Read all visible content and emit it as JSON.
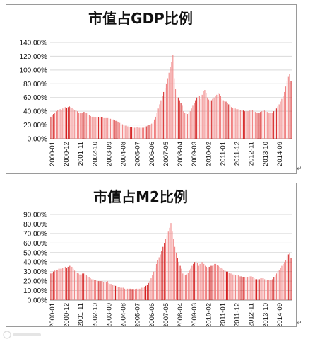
{
  "chart_data": [
    {
      "type": "bar",
      "title": "市值占GDP比例",
      "ylim": [
        0,
        140
      ],
      "yticks": [
        "0.00%",
        "20.00%",
        "40.00%",
        "60.00%",
        "80.00%",
        "100.00%",
        "120.00%",
        "140.00%"
      ],
      "xticks": [
        "2000-01",
        "2000-12",
        "2001-11",
        "2002-10",
        "2003-09",
        "2004-08",
        "2005-07",
        "2006-06",
        "2007-05",
        "2008-04",
        "2009-03",
        "2010-02",
        "2011-01",
        "2011-12",
        "2012-11",
        "2013-10",
        "2014-09"
      ],
      "colors": {
        "bar": "#f08080",
        "bar_dark": "#d42020"
      },
      "grid": true,
      "values": [
        32,
        34,
        36,
        38,
        40,
        42,
        42,
        43,
        42,
        44,
        46,
        46,
        45,
        46,
        47,
        46,
        45,
        43,
        42,
        42,
        40,
        38,
        37,
        37,
        38,
        39,
        38,
        37,
        35,
        34,
        33,
        32,
        32,
        31,
        31,
        31,
        31,
        30,
        31,
        31,
        30,
        30,
        30,
        30,
        29,
        29,
        29,
        28,
        27,
        26,
        25,
        24,
        23,
        22,
        21,
        20,
        19,
        19,
        18,
        17,
        17,
        17,
        17,
        16,
        16,
        17,
        16,
        16,
        16,
        16,
        16,
        17,
        18,
        19,
        20,
        21,
        22,
        24,
        28,
        32,
        38,
        44,
        50,
        56,
        62,
        68,
        74,
        80,
        88,
        96,
        104,
        112,
        122,
        88,
        72,
        64,
        60,
        56,
        52,
        48,
        40,
        38,
        37,
        36,
        38,
        40,
        44,
        48,
        52,
        56,
        60,
        64,
        62,
        58,
        64,
        70,
        71,
        66,
        60,
        57,
        55,
        56,
        58,
        60,
        62,
        64,
        66,
        65,
        62,
        58,
        56,
        55,
        54,
        52,
        50,
        48,
        46,
        45,
        44,
        44,
        43,
        43,
        42,
        42,
        41,
        41,
        40,
        40,
        40,
        40,
        41,
        42,
        42,
        40,
        39,
        38,
        38,
        38,
        39,
        40,
        41,
        41,
        40,
        39,
        38,
        38,
        38,
        38,
        40,
        42,
        44,
        47,
        50,
        54,
        58,
        62,
        68,
        76,
        84,
        90,
        94,
        84
      ]
    },
    {
      "type": "bar",
      "title": "市值占M2比例",
      "ylim": [
        0,
        90
      ],
      "yticks": [
        "0.00%",
        "10.00%",
        "20.00%",
        "30.00%",
        "40.00%",
        "50.00%",
        "60.00%",
        "70.00%",
        "80.00%",
        "90.00%"
      ],
      "xticks": [
        "2000-01",
        "2000-12",
        "2001-11",
        "2002-10",
        "2003-09",
        "2004-08",
        "2005-07",
        "2006-06",
        "2007-05",
        "2008-04",
        "2009-03",
        "2010-02",
        "2011-01",
        "2011-12",
        "2012-11",
        "2013-10",
        "2014-09"
      ],
      "colors": {
        "bar": "#f08080",
        "bar_dark": "#d42020"
      },
      "grid": true,
      "values": [
        28,
        29,
        30,
        31,
        32,
        32,
        33,
        33,
        33,
        34,
        35,
        35,
        34,
        35,
        36,
        36,
        35,
        33,
        31,
        30,
        29,
        28,
        27,
        27,
        28,
        28,
        27,
        26,
        25,
        24,
        23,
        22,
        22,
        21,
        21,
        21,
        20,
        20,
        20,
        20,
        19,
        19,
        19,
        20,
        18,
        17,
        17,
        16,
        16,
        15,
        15,
        14,
        14,
        13,
        13,
        13,
        12,
        12,
        12,
        12,
        12,
        11,
        11,
        11,
        11,
        12,
        12,
        12,
        12,
        13,
        13,
        14,
        15,
        16,
        18,
        20,
        23,
        26,
        30,
        34,
        38,
        42,
        45,
        48,
        52,
        56,
        60,
        64,
        68,
        72,
        76,
        81,
        72,
        64,
        56,
        50,
        44,
        40,
        36,
        33,
        28,
        26,
        26,
        27,
        29,
        31,
        33,
        36,
        38,
        40,
        41,
        39,
        36,
        38,
        40,
        40,
        38,
        36,
        35,
        34,
        35,
        36,
        36,
        37,
        38,
        38,
        37,
        36,
        35,
        34,
        33,
        32,
        31,
        30,
        30,
        29,
        28,
        28,
        27,
        27,
        26,
        26,
        26,
        25,
        25,
        24,
        24,
        24,
        24,
        24,
        24,
        25,
        25,
        24,
        23,
        22,
        22,
        22,
        22,
        23,
        23,
        23,
        22,
        21,
        21,
        21,
        21,
        21,
        22,
        24,
        26,
        28,
        30,
        32,
        34,
        36,
        38,
        40,
        42,
        46,
        48,
        49,
        44
      ]
    }
  ]
}
